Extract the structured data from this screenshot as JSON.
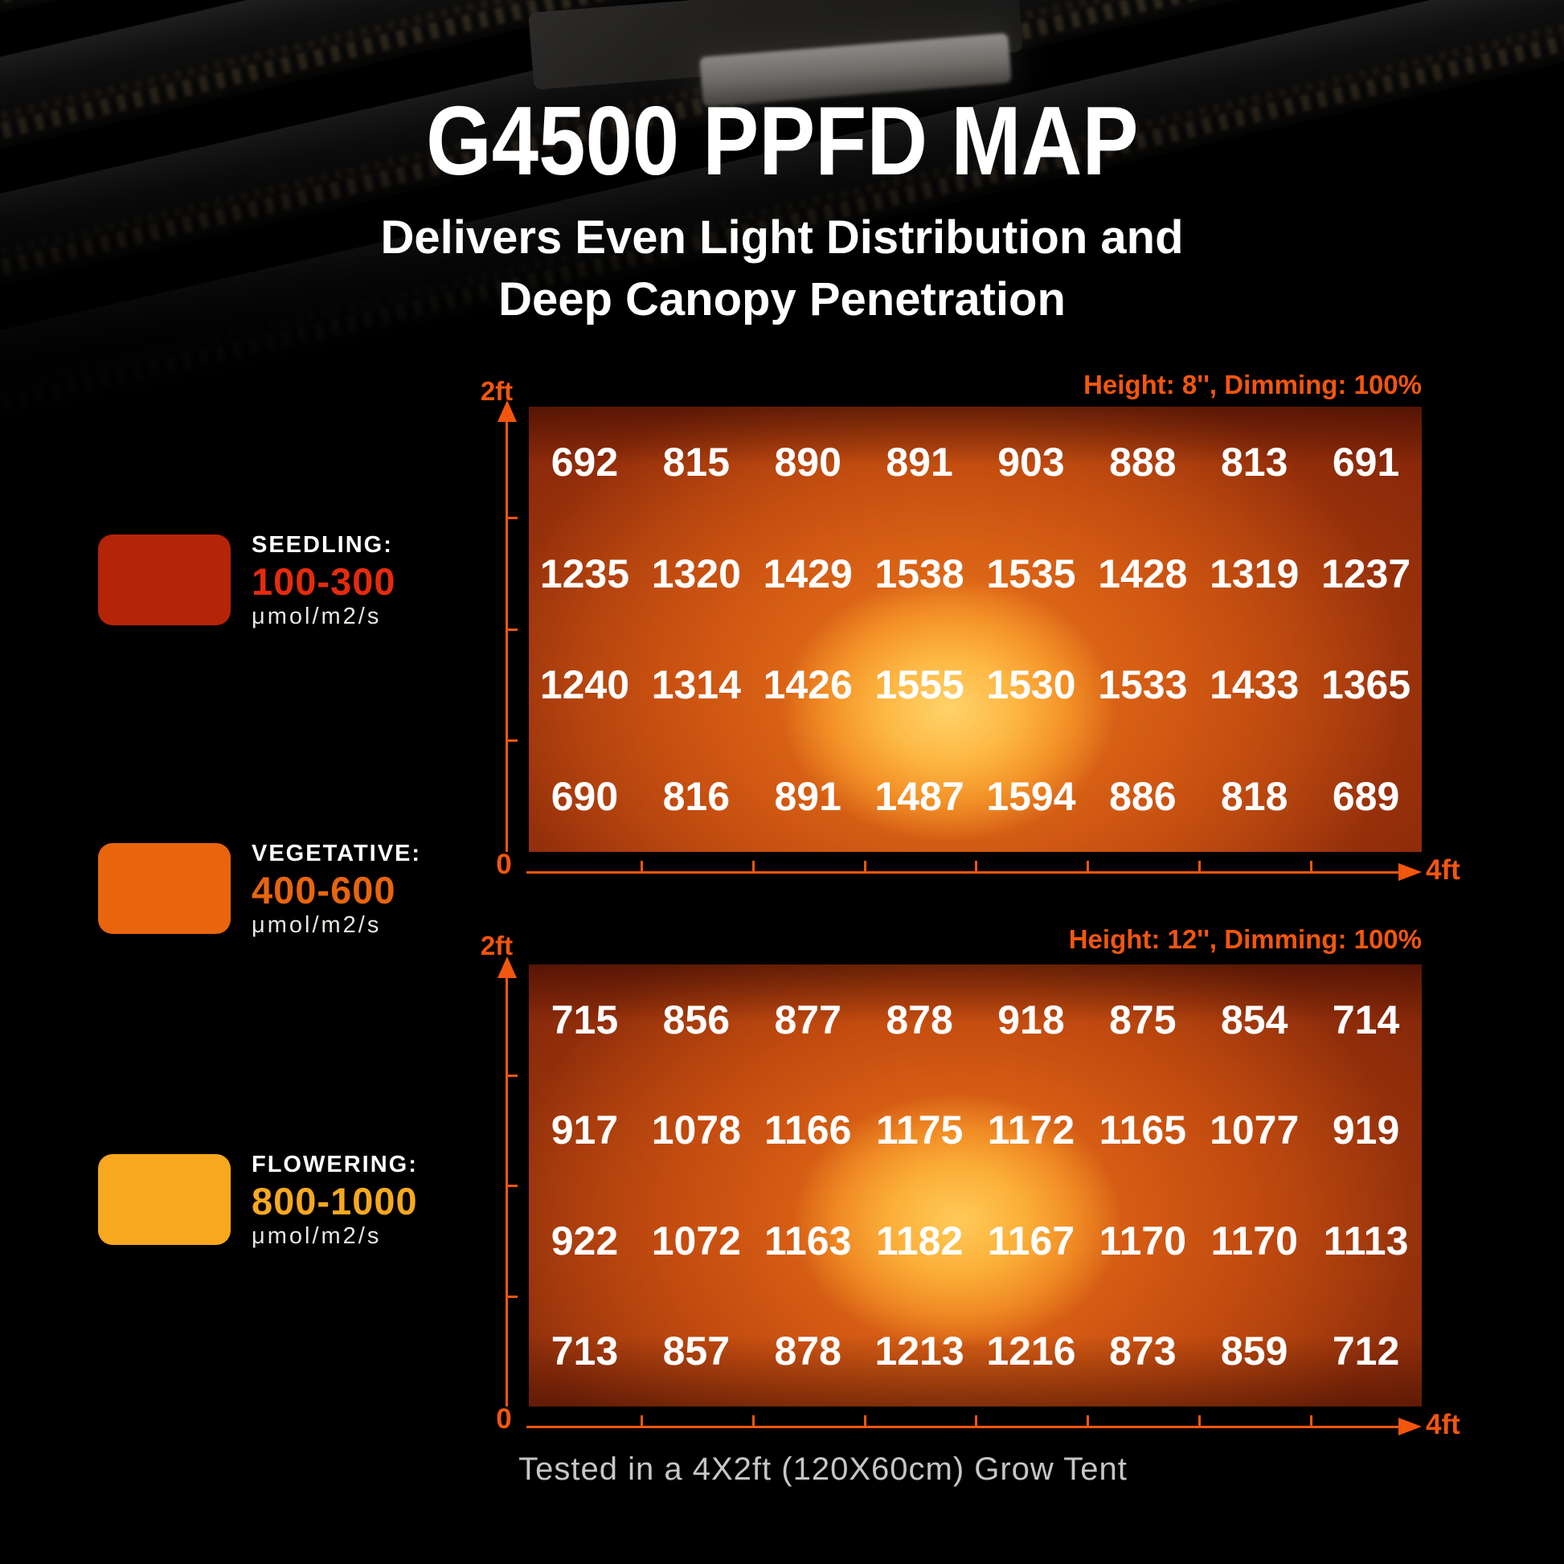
{
  "title": "G4500 PPFD MAP",
  "subtitle_line1": "Delivers Even Light Distribution and",
  "subtitle_line2": "Deep Canopy Penetration",
  "footer": "Tested in a 4X2ft (120X60cm) Grow Tent",
  "colors": {
    "axis_orange": "#f2560f",
    "seedling_swatch": "#b42408",
    "seedling_range": "#e62b0d",
    "vegetative_swatch": "#e8650e",
    "vegetative_range": "#e8650e",
    "flowering_swatch": "#f7a81f",
    "flowering_range": "#f7a81f"
  },
  "legend": {
    "items": [
      {
        "stage": "SEEDLING:",
        "range": "100-300",
        "unit": "μmol/m2/s"
      },
      {
        "stage": "VEGETATIVE:",
        "range": "400-600",
        "unit": "μmol/m2/s"
      },
      {
        "stage": "FLOWERING:",
        "range": "800-1000",
        "unit": "μmol/m2/s"
      }
    ]
  },
  "charts": [
    {
      "header": "Height: 8'', Dimming: 100%",
      "y_max_label": "2ft",
      "origin_label": "0",
      "x_max_label": "4ft"
    },
    {
      "header": "Height: 12'', Dimming: 100%",
      "y_max_label": "2ft",
      "origin_label": "0",
      "x_max_label": "4ft"
    }
  ],
  "chart_data": [
    {
      "type": "heatmap",
      "title": "Height: 8'', Dimming: 100%",
      "unit": "μmol/m2/s",
      "x_range": [
        0,
        4
      ],
      "x_unit": "ft",
      "y_range": [
        0,
        2
      ],
      "y_unit": "ft",
      "values": [
        [
          692,
          815,
          890,
          891,
          903,
          888,
          813,
          691
        ],
        [
          1235,
          1320,
          1429,
          1538,
          1535,
          1428,
          1319,
          1237
        ],
        [
          1240,
          1314,
          1426,
          1555,
          1530,
          1533,
          1433,
          1365
        ],
        [
          690,
          816,
          891,
          1487,
          1594,
          886,
          818,
          689
        ]
      ]
    },
    {
      "type": "heatmap",
      "title": "Height: 12'', Dimming: 100%",
      "unit": "μmol/m2/s",
      "x_range": [
        0,
        4
      ],
      "x_unit": "ft",
      "y_range": [
        0,
        2
      ],
      "y_unit": "ft",
      "values": [
        [
          715,
          856,
          877,
          878,
          918,
          875,
          854,
          714
        ],
        [
          917,
          1078,
          1166,
          1175,
          1172,
          1165,
          1077,
          919
        ],
        [
          922,
          1072,
          1163,
          1182,
          1167,
          1170,
          1170,
          1113
        ],
        [
          713,
          857,
          878,
          1213,
          1216,
          873,
          859,
          712
        ]
      ]
    }
  ],
  "test_note": "Tested in a 4X2ft (120X60cm) Grow Tent"
}
